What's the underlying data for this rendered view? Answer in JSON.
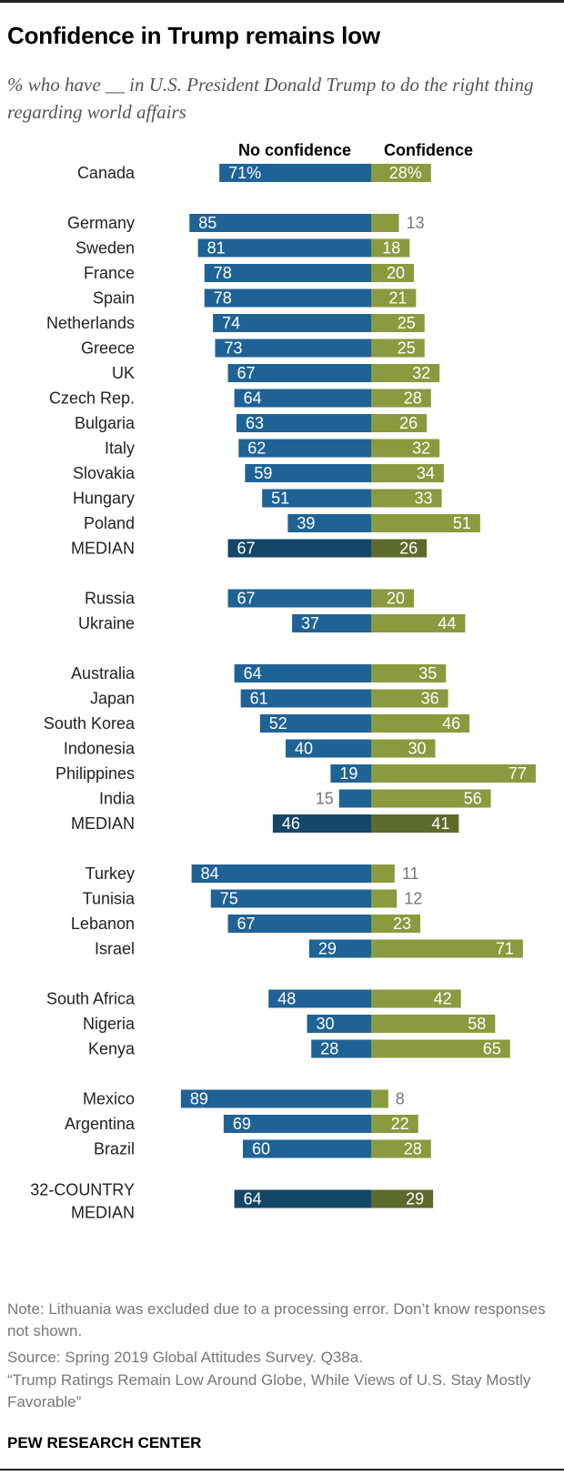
{
  "title": "Confidence in Trump remains low",
  "subtitle": "% who have __ in U.S. President Donald Trump to do the right thing regarding world affairs",
  "footer": {
    "note": "Note: Lithuania was excluded due to a processing error. Don’t know responses not shown.",
    "source": "Source: Spring 2019 Global Attitudes Survey. Q38a.",
    "report": "“Trump Ratings Remain Low Around Globe, While Views of U.S. Stay Mostly Favorable”",
    "brand": "PEW RESEARCH CENTER"
  },
  "colors": {
    "no_confidence": "#1f6396",
    "confidence": "#8a9a3e",
    "no_confidence_median": "#134667",
    "confidence_median": "#5c6a2c",
    "outside_label": "#777777"
  },
  "chart_data": {
    "type": "bar",
    "orientation": "diverging-horizontal",
    "series_names": [
      "No confidence",
      "Confidence"
    ],
    "rows": [
      {
        "label": "Canada",
        "no_confidence": 71,
        "confidence": 28,
        "no_label": "71%",
        "conf_label": "28%",
        "group": 0
      },
      {
        "label": "Germany",
        "no_confidence": 85,
        "confidence": 13,
        "group": 1
      },
      {
        "label": "Sweden",
        "no_confidence": 81,
        "confidence": 18,
        "group": 1
      },
      {
        "label": "France",
        "no_confidence": 78,
        "confidence": 20,
        "group": 1
      },
      {
        "label": "Spain",
        "no_confidence": 78,
        "confidence": 21,
        "group": 1
      },
      {
        "label": "Netherlands",
        "no_confidence": 74,
        "confidence": 25,
        "group": 1
      },
      {
        "label": "Greece",
        "no_confidence": 73,
        "confidence": 25,
        "group": 1
      },
      {
        "label": "UK",
        "no_confidence": 67,
        "confidence": 32,
        "group": 1
      },
      {
        "label": "Czech Rep.",
        "no_confidence": 64,
        "confidence": 28,
        "group": 1
      },
      {
        "label": "Bulgaria",
        "no_confidence": 63,
        "confidence": 26,
        "group": 1
      },
      {
        "label": "Italy",
        "no_confidence": 62,
        "confidence": 32,
        "group": 1
      },
      {
        "label": "Slovakia",
        "no_confidence": 59,
        "confidence": 34,
        "group": 1
      },
      {
        "label": "Hungary",
        "no_confidence": 51,
        "confidence": 33,
        "group": 1
      },
      {
        "label": "Poland",
        "no_confidence": 39,
        "confidence": 51,
        "group": 1
      },
      {
        "label": "MEDIAN",
        "no_confidence": 67,
        "confidence": 26,
        "median": true,
        "group": 1
      },
      {
        "label": "Russia",
        "no_confidence": 67,
        "confidence": 20,
        "group": 2
      },
      {
        "label": "Ukraine",
        "no_confidence": 37,
        "confidence": 44,
        "group": 2
      },
      {
        "label": "Australia",
        "no_confidence": 64,
        "confidence": 35,
        "group": 3
      },
      {
        "label": "Japan",
        "no_confidence": 61,
        "confidence": 36,
        "group": 3
      },
      {
        "label": "South Korea",
        "no_confidence": 52,
        "confidence": 46,
        "group": 3
      },
      {
        "label": "Indonesia",
        "no_confidence": 40,
        "confidence": 30,
        "group": 3
      },
      {
        "label": "Philippines",
        "no_confidence": 19,
        "confidence": 77,
        "group": 3
      },
      {
        "label": "India",
        "no_confidence": 15,
        "confidence": 56,
        "group": 3
      },
      {
        "label": "MEDIAN",
        "no_confidence": 46,
        "confidence": 41,
        "median": true,
        "group": 3
      },
      {
        "label": "Turkey",
        "no_confidence": 84,
        "confidence": 11,
        "group": 4
      },
      {
        "label": "Tunisia",
        "no_confidence": 75,
        "confidence": 12,
        "group": 4
      },
      {
        "label": "Lebanon",
        "no_confidence": 67,
        "confidence": 23,
        "group": 4
      },
      {
        "label": "Israel",
        "no_confidence": 29,
        "confidence": 71,
        "group": 4
      },
      {
        "label": "South Africa",
        "no_confidence": 48,
        "confidence": 42,
        "group": 5
      },
      {
        "label": "Nigeria",
        "no_confidence": 30,
        "confidence": 58,
        "group": 5
      },
      {
        "label": "Kenya",
        "no_confidence": 28,
        "confidence": 65,
        "group": 5
      },
      {
        "label": "Mexico",
        "no_confidence": 89,
        "confidence": 8,
        "group": 6
      },
      {
        "label": "Argentina",
        "no_confidence": 69,
        "confidence": 22,
        "group": 6
      },
      {
        "label": "Brazil",
        "no_confidence": 60,
        "confidence": 28,
        "group": 6
      },
      {
        "label": "32-COUNTRY MEDIAN",
        "label_lines": [
          "32-COUNTRY",
          "MEDIAN"
        ],
        "no_confidence": 64,
        "confidence": 29,
        "median": true,
        "group": 7
      }
    ]
  }
}
